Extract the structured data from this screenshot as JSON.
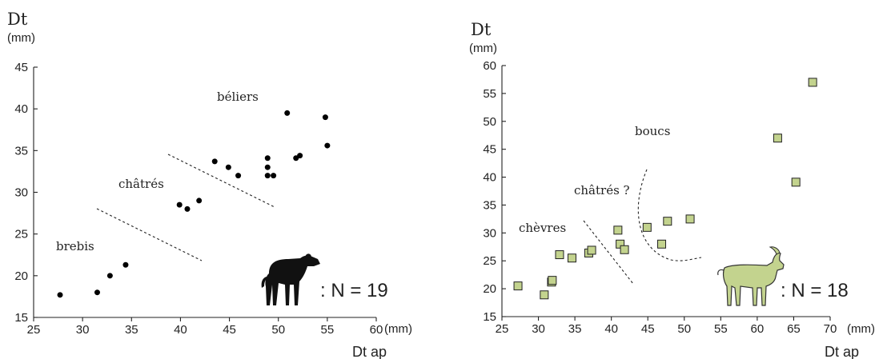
{
  "chart_data": [
    {
      "type": "scatter",
      "ylabel": "Dt",
      "yunit": "(mm)",
      "xlabel": "Dt ap",
      "xunit": "(mm)",
      "xlim": [
        25,
        60
      ],
      "ylim": [
        15,
        45
      ],
      "xticks": [
        25,
        30,
        35,
        40,
        45,
        50,
        55,
        60
      ],
      "yticks": [
        15,
        20,
        25,
        30,
        35,
        40,
        45
      ],
      "marker": "circle",
      "marker_color": "#000000",
      "annotations": [
        "brebis",
        "châtrés",
        "béliers"
      ],
      "n_label": ": N = 19",
      "icon": "sheep-silhouette",
      "points": [
        {
          "x": 27.7,
          "y": 17.7
        },
        {
          "x": 31.5,
          "y": 18.0
        },
        {
          "x": 32.8,
          "y": 20.0
        },
        {
          "x": 34.4,
          "y": 21.3
        },
        {
          "x": 39.9,
          "y": 28.5
        },
        {
          "x": 40.7,
          "y": 28.0
        },
        {
          "x": 41.9,
          "y": 29.0
        },
        {
          "x": 43.5,
          "y": 33.7
        },
        {
          "x": 44.9,
          "y": 33.0
        },
        {
          "x": 45.9,
          "y": 32.0
        },
        {
          "x": 48.9,
          "y": 34.1
        },
        {
          "x": 48.9,
          "y": 33.0
        },
        {
          "x": 48.9,
          "y": 32.0
        },
        {
          "x": 49.5,
          "y": 32.0
        },
        {
          "x": 50.9,
          "y": 39.5
        },
        {
          "x": 51.8,
          "y": 34.1
        },
        {
          "x": 52.2,
          "y": 34.4
        },
        {
          "x": 54.8,
          "y": 39.0
        },
        {
          "x": 55.0,
          "y": 35.6
        }
      ]
    },
    {
      "type": "scatter",
      "ylabel": "Dt",
      "yunit": "(mm)",
      "xlabel": "Dt ap",
      "xunit": "(mm)",
      "xlim": [
        25,
        70
      ],
      "ylim": [
        15,
        60
      ],
      "xticks": [
        25,
        30,
        35,
        40,
        45,
        50,
        55,
        60,
        65,
        70
      ],
      "yticks": [
        15,
        20,
        25,
        30,
        35,
        40,
        45,
        50,
        55,
        60
      ],
      "marker": "square",
      "marker_color": "#c3d38e",
      "annotations": [
        "chèvres",
        "châtrés ?",
        "boucs"
      ],
      "n_label": ": N = 18",
      "icon": "goat-silhouette",
      "points": [
        {
          "x": 27.2,
          "y": 20.5
        },
        {
          "x": 30.8,
          "y": 18.9
        },
        {
          "x": 31.8,
          "y": 21.2
        },
        {
          "x": 31.9,
          "y": 21.5
        },
        {
          "x": 32.9,
          "y": 26.1
        },
        {
          "x": 34.6,
          "y": 25.5
        },
        {
          "x": 36.9,
          "y": 26.4
        },
        {
          "x": 37.3,
          "y": 26.9
        },
        {
          "x": 40.9,
          "y": 30.5
        },
        {
          "x": 41.2,
          "y": 28.0
        },
        {
          "x": 41.8,
          "y": 27.0
        },
        {
          "x": 44.9,
          "y": 31.0
        },
        {
          "x": 46.9,
          "y": 28.0
        },
        {
          "x": 47.7,
          "y": 32.1
        },
        {
          "x": 50.8,
          "y": 32.5
        },
        {
          "x": 62.8,
          "y": 47.0
        },
        {
          "x": 65.3,
          "y": 39.1
        },
        {
          "x": 67.6,
          "y": 57.0
        }
      ]
    }
  ]
}
